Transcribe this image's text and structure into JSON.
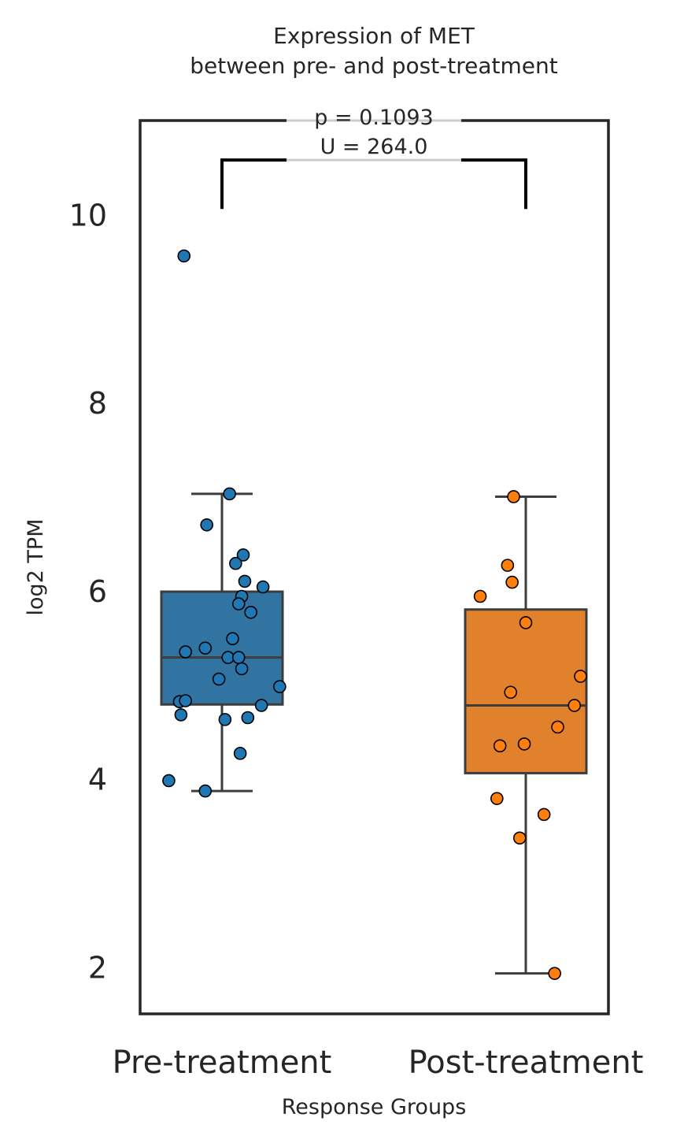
{
  "chart_data": {
    "type": "box",
    "title_lines": [
      "Expression of MET",
      "between pre- and post-treatment"
    ],
    "xlabel": "Response Groups",
    "ylabel": "log2 TPM",
    "ylim": [
      1.5,
      11.0
    ],
    "yticks": [
      2,
      4,
      6,
      8,
      10
    ],
    "grid": false,
    "categories": [
      "Pre-treatment",
      "Post-treatment"
    ],
    "colors": {
      "pre_box": "#3274a1",
      "post_box": "#e1812c",
      "pre_point": "#1f77b4",
      "post_point": "#ff7f0e",
      "edge": "#3d3d3d",
      "bracket": "#000000",
      "annotation_line": "#cccccc"
    },
    "boxes": [
      {
        "name": "Pre-treatment",
        "whisker_low": 3.87,
        "q1": 4.79,
        "median": 5.29,
        "q3": 5.99,
        "whisker_high": 7.03,
        "outliers": [
          9.56
        ]
      },
      {
        "name": "Post-treatment",
        "whisker_low": 1.93,
        "q1": 4.06,
        "median": 4.78,
        "q3": 5.8,
        "whisker_high": 7.0,
        "outliers": []
      }
    ],
    "points": [
      {
        "name": "Pre-treatment",
        "points": [
          {
            "jitter": -0.25,
            "y": 9.56
          },
          {
            "jitter": 0.05,
            "y": 7.03
          },
          {
            "jitter": -0.1,
            "y": 6.7
          },
          {
            "jitter": 0.14,
            "y": 6.38
          },
          {
            "jitter": 0.09,
            "y": 6.29
          },
          {
            "jitter": 0.15,
            "y": 6.1
          },
          {
            "jitter": 0.27,
            "y": 6.04
          },
          {
            "jitter": 0.13,
            "y": 5.94
          },
          {
            "jitter": 0.11,
            "y": 5.86
          },
          {
            "jitter": 0.19,
            "y": 5.77
          },
          {
            "jitter": 0.07,
            "y": 5.49
          },
          {
            "jitter": -0.11,
            "y": 5.39
          },
          {
            "jitter": -0.24,
            "y": 5.35
          },
          {
            "jitter": 0.04,
            "y": 5.29
          },
          {
            "jitter": 0.11,
            "y": 5.29
          },
          {
            "jitter": 0.13,
            "y": 5.17
          },
          {
            "jitter": 0.38,
            "y": 4.98
          },
          {
            "jitter": -0.02,
            "y": 5.06
          },
          {
            "jitter": -0.28,
            "y": 4.82
          },
          {
            "jitter": -0.24,
            "y": 4.83
          },
          {
            "jitter": 0.26,
            "y": 4.78
          },
          {
            "jitter": -0.27,
            "y": 4.68
          },
          {
            "jitter": 0.02,
            "y": 4.63
          },
          {
            "jitter": 0.17,
            "y": 4.65
          },
          {
            "jitter": 0.12,
            "y": 4.27
          },
          {
            "jitter": -0.35,
            "y": 3.98
          },
          {
            "jitter": -0.11,
            "y": 3.87
          }
        ]
      },
      {
        "name": "Post-treatment",
        "points": [
          {
            "jitter": -0.08,
            "y": 7.0
          },
          {
            "jitter": -0.12,
            "y": 6.27
          },
          {
            "jitter": -0.09,
            "y": 6.09
          },
          {
            "jitter": -0.3,
            "y": 5.94
          },
          {
            "jitter": 0.0,
            "y": 5.66
          },
          {
            "jitter": 0.36,
            "y": 5.09
          },
          {
            "jitter": -0.1,
            "y": 4.92
          },
          {
            "jitter": 0.32,
            "y": 4.78
          },
          {
            "jitter": 0.21,
            "y": 4.55
          },
          {
            "jitter": -0.17,
            "y": 4.35
          },
          {
            "jitter": -0.01,
            "y": 4.37
          },
          {
            "jitter": -0.19,
            "y": 3.79
          },
          {
            "jitter": 0.12,
            "y": 3.62
          },
          {
            "jitter": -0.04,
            "y": 3.37
          },
          {
            "jitter": 0.19,
            "y": 1.93
          }
        ]
      }
    ],
    "annotation": {
      "p_text": "p = 0.1093",
      "u_text": "U = 264.0",
      "bracket_y": 10.58,
      "bracket_tip_y": 10.06
    }
  }
}
